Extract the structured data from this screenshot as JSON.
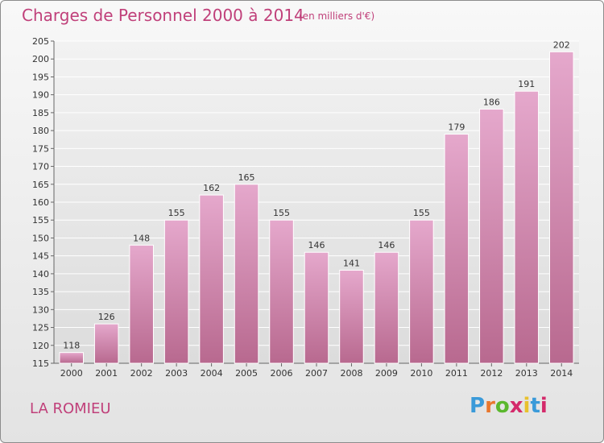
{
  "chart_data": {
    "type": "bar",
    "title": "Charges de Personnel 2000 à 2014",
    "subtitle": "(en milliers d'€)",
    "categories": [
      "2000",
      "2001",
      "2002",
      "2003",
      "2004",
      "2005",
      "2006",
      "2007",
      "2008",
      "2009",
      "2010",
      "2011",
      "2012",
      "2013",
      "2014"
    ],
    "values": [
      118,
      126,
      148,
      155,
      162,
      165,
      155,
      146,
      141,
      146,
      155,
      179,
      186,
      191,
      202
    ],
    "ylim": [
      115,
      205
    ],
    "yticks": [
      115,
      120,
      125,
      130,
      135,
      140,
      145,
      150,
      155,
      160,
      165,
      170,
      175,
      180,
      185,
      190,
      195,
      200,
      205
    ],
    "grid": true,
    "bar_color": "#d98fb8",
    "xlabel": "",
    "ylabel": ""
  },
  "footer": {
    "commune": "LA ROMIEU",
    "logo_text": "Proxiti",
    "logo_colors": [
      "#3a9ad9",
      "#e8772e",
      "#5bb82e",
      "#d42a6b",
      "#e8c12e",
      "#3a9ad9",
      "#d42a6b"
    ]
  }
}
